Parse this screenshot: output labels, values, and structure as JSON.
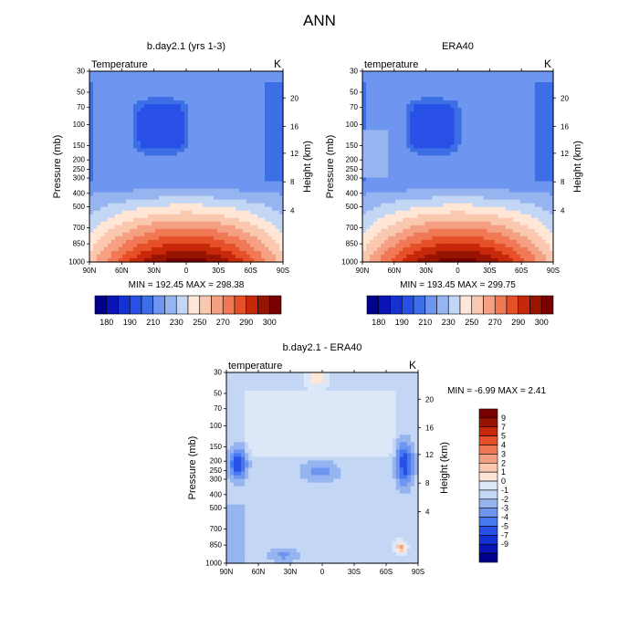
{
  "title": "ANN",
  "colors": {
    "panel_scale": [
      "#00008c",
      "#0a14b4",
      "#1432d2",
      "#2850e6",
      "#3c6ee6",
      "#6e96f0",
      "#96b4f0",
      "#c3d7f5",
      "#ffe6d7",
      "#fac8af",
      "#f5a082",
      "#f07855",
      "#e65028",
      "#c8280a",
      "#961400",
      "#780000"
    ],
    "diff_scale": [
      "#00008c",
      "#0a14b4",
      "#1432d2",
      "#2850e6",
      "#4678f0",
      "#6e96f0",
      "#96b4f0",
      "#c3d7f5",
      "#dce8f8",
      "#ffe6d7",
      "#fac8af",
      "#f5a082",
      "#f07855",
      "#e65028",
      "#c8280a",
      "#961400",
      "#780000"
    ]
  },
  "chart_data": [
    {
      "type": "heatmap",
      "title": "b.day2.1 (yrs 1-3)",
      "left_label": "Temperature",
      "units": "K",
      "ylabel": "Pressure (mb)",
      "right_ylabel": "Height (km)",
      "x_ticks": [
        "90N",
        "60N",
        "30N",
        "0",
        "30S",
        "60S",
        "90S"
      ],
      "y_ticks": [
        "30",
        "50",
        "70",
        "100",
        "150",
        "200",
        "250",
        "300",
        "400",
        "500",
        "700",
        "850",
        "1000"
      ],
      "height_ticks": [
        "20",
        "16",
        "12",
        "8",
        "4"
      ],
      "min_max_text": "MIN = 192.45   MAX = 298.38",
      "colorbar_labels": [
        "180",
        "190",
        "210",
        "230",
        "250",
        "270",
        "290",
        "300"
      ]
    },
    {
      "type": "heatmap",
      "title": "ERA40",
      "left_label": "temperature",
      "units": "K",
      "ylabel": "Pressure (mb)",
      "right_ylabel": "Height (km)",
      "x_ticks": [
        "90N",
        "60N",
        "30N",
        "0",
        "30S",
        "60S",
        "90S"
      ],
      "y_ticks": [
        "30",
        "50",
        "70",
        "100",
        "150",
        "200",
        "250",
        "300",
        "400",
        "500",
        "700",
        "850",
        "1000"
      ],
      "height_ticks": [
        "20",
        "16",
        "12",
        "8",
        "4"
      ],
      "min_max_text": "MIN = 193.45   MAX = 299.75",
      "colorbar_labels": [
        "180",
        "190",
        "210",
        "230",
        "250",
        "270",
        "290",
        "300"
      ]
    },
    {
      "type": "heatmap",
      "title": "b.day2.1 - ERA40",
      "left_label": "temperature",
      "units": "K",
      "ylabel": "Pressure (mb)",
      "right_ylabel": "Height (km)",
      "x_ticks": [
        "90N",
        "60N",
        "30N",
        "0",
        "30S",
        "60S",
        "90S"
      ],
      "y_ticks": [
        "30",
        "50",
        "70",
        "100",
        "150",
        "200",
        "250",
        "300",
        "400",
        "500",
        "700",
        "850",
        "1000"
      ],
      "height_ticks": [
        "20",
        "16",
        "12",
        "8",
        "4"
      ],
      "min_max_text": "MIN =  -6.99  MAX =   2.41",
      "colorbar_labels": [
        "9",
        "7",
        "5",
        "4",
        "3",
        "2",
        "1",
        "0",
        "-1",
        "-2",
        "-3",
        "-4",
        "-5",
        "-7",
        "-9"
      ]
    }
  ]
}
